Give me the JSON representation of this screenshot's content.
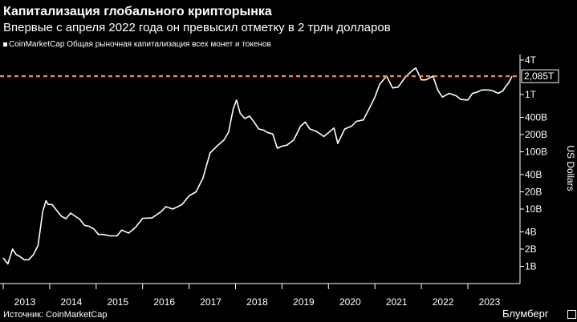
{
  "title": "Капитализация глобального крипторынка",
  "subtitle": "Впервые с апреля 2022 года он превысил отметку в 2 трлн долларов",
  "legend_label": "CoinMarketCap Общая рыночная капитализация всех монет и токенов",
  "source": "Источник: CoinMarketCap",
  "brand": "Блумберг",
  "colors": {
    "background": "#000000",
    "line": "#ffffff",
    "reference": "#f28c3a",
    "text": "#ffffff"
  },
  "chart_data": {
    "type": "line",
    "title": "Капитализация глобального крипторынка",
    "subtitle": "Впервые с апреля 2022 года он превысил отметку в 2 трлн долларов",
    "ylabel": "US Dollars",
    "yscale": "log",
    "ylim_usd": [
      500000000,
      5000000000000
    ],
    "xlim": [
      2013.0,
      2023.95
    ],
    "x_ticks": [
      {
        "x": 2013.0,
        "label": "2013"
      },
      {
        "x": 2014.0,
        "label": "2014"
      },
      {
        "x": 2015.0,
        "label": "2015"
      },
      {
        "x": 2016.0,
        "label": "2016"
      },
      {
        "x": 2017.0,
        "label": "2017"
      },
      {
        "x": 2018.0,
        "label": "2018"
      },
      {
        "x": 2019.0,
        "label": "2019"
      },
      {
        "x": 2020.0,
        "label": "2020"
      },
      {
        "x": 2021.0,
        "label": "2021"
      },
      {
        "x": 2022.0,
        "label": "2022"
      },
      {
        "x": 2023.0,
        "label": "2023"
      }
    ],
    "y_ticks": [
      {
        "value": 4000000000000,
        "label": "4T"
      },
      {
        "value": 1000000000000,
        "label": "1T"
      },
      {
        "value": 400000000000,
        "label": "400B"
      },
      {
        "value": 200000000000,
        "label": "200B"
      },
      {
        "value": 100000000000,
        "label": "100B"
      },
      {
        "value": 40000000000,
        "label": "40B"
      },
      {
        "value": 20000000000,
        "label": "20B"
      },
      {
        "value": 10000000000,
        "label": "10B"
      },
      {
        "value": 4000000000,
        "label": "4B"
      },
      {
        "value": 2000000000,
        "label": "2B"
      },
      {
        "value": 1000000000,
        "label": "1B"
      }
    ],
    "reference_line": {
      "value": 2085000000000,
      "label": "2,085T"
    },
    "series": [
      {
        "name": "CoinMarketCap Общая рыночная капитализация всех монет и токенов",
        "points": [
          [
            2013.0,
            1.4
          ],
          [
            2013.1,
            1.1
          ],
          [
            2013.2,
            2.0
          ],
          [
            2013.28,
            1.6
          ],
          [
            2013.35,
            1.5
          ],
          [
            2013.45,
            1.3
          ],
          [
            2013.55,
            1.3
          ],
          [
            2013.65,
            1.6
          ],
          [
            2013.75,
            2.3
          ],
          [
            2013.85,
            9.0
          ],
          [
            2013.92,
            14.0
          ],
          [
            2013.97,
            12.0
          ],
          [
            2014.05,
            12.0
          ],
          [
            2014.15,
            9.5
          ],
          [
            2014.25,
            7.5
          ],
          [
            2014.35,
            6.8
          ],
          [
            2014.45,
            8.5
          ],
          [
            2014.55,
            7.5
          ],
          [
            2014.65,
            6.6
          ],
          [
            2014.75,
            5.2
          ],
          [
            2014.85,
            5.0
          ],
          [
            2014.95,
            4.5
          ],
          [
            2015.05,
            3.6
          ],
          [
            2015.15,
            3.6
          ],
          [
            2015.3,
            3.4
          ],
          [
            2015.45,
            3.4
          ],
          [
            2015.55,
            4.3
          ],
          [
            2015.7,
            3.8
          ],
          [
            2015.85,
            4.8
          ],
          [
            2016.0,
            6.9
          ],
          [
            2016.2,
            7.0
          ],
          [
            2016.4,
            9.0
          ],
          [
            2016.5,
            11.0
          ],
          [
            2016.65,
            10.0
          ],
          [
            2016.85,
            12.0
          ],
          [
            2017.0,
            17.0
          ],
          [
            2017.15,
            20.0
          ],
          [
            2017.3,
            35.0
          ],
          [
            2017.45,
            95.0
          ],
          [
            2017.6,
            125.0
          ],
          [
            2017.75,
            160.0
          ],
          [
            2017.85,
            220.0
          ],
          [
            2017.95,
            560.0
          ],
          [
            2018.02,
            800.0
          ],
          [
            2018.1,
            470.0
          ],
          [
            2018.2,
            380.0
          ],
          [
            2018.3,
            420.0
          ],
          [
            2018.4,
            330.0
          ],
          [
            2018.5,
            250.0
          ],
          [
            2018.6,
            240.0
          ],
          [
            2018.7,
            215.0
          ],
          [
            2018.8,
            205.0
          ],
          [
            2018.9,
            115.0
          ],
          [
            2019.0,
            125.0
          ],
          [
            2019.1,
            130.0
          ],
          [
            2019.25,
            160.0
          ],
          [
            2019.4,
            280.0
          ],
          [
            2019.5,
            330.0
          ],
          [
            2019.6,
            250.0
          ],
          [
            2019.75,
            225.0
          ],
          [
            2019.9,
            185.0
          ],
          [
            2020.0,
            215.0
          ],
          [
            2020.12,
            260.0
          ],
          [
            2020.2,
            140.0
          ],
          [
            2020.35,
            250.0
          ],
          [
            2020.5,
            280.0
          ],
          [
            2020.6,
            340.0
          ],
          [
            2020.75,
            360.0
          ],
          [
            2020.88,
            570.0
          ],
          [
            2021.0,
            900.0
          ],
          [
            2021.1,
            1500.0
          ],
          [
            2021.25,
            2100.0
          ],
          [
            2021.38,
            1300.0
          ],
          [
            2021.5,
            1350.0
          ],
          [
            2021.65,
            2000.0
          ],
          [
            2021.8,
            2600.0
          ],
          [
            2021.88,
            2900.0
          ],
          [
            2022.0,
            1800.0
          ],
          [
            2022.1,
            1800.0
          ],
          [
            2022.25,
            2100.0
          ],
          [
            2022.35,
            1200.0
          ],
          [
            2022.45,
            900.0
          ],
          [
            2022.6,
            1050.0
          ],
          [
            2022.75,
            950.0
          ],
          [
            2022.85,
            820.0
          ],
          [
            2023.0,
            800.0
          ],
          [
            2023.1,
            1050.0
          ],
          [
            2023.2,
            1100.0
          ],
          [
            2023.3,
            1200.0
          ],
          [
            2023.45,
            1200.0
          ],
          [
            2023.55,
            1150.0
          ],
          [
            2023.65,
            1050.0
          ],
          [
            2023.75,
            1150.0
          ],
          [
            2023.82,
            1400.0
          ],
          [
            2023.88,
            1600.0
          ],
          [
            2023.95,
            2085.0
          ]
        ],
        "point_units": "x: year, y: USD billions"
      }
    ]
  }
}
